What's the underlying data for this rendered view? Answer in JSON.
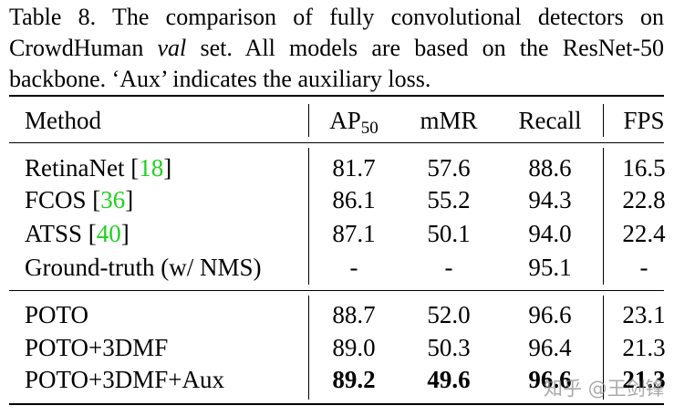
{
  "caption": {
    "lines": [
      [
        {
          "text": "Table 8. The comparison of fully convolutional detectors on"
        }
      ],
      [
        {
          "text": "CrowdHuman "
        },
        {
          "text": "val",
          "italic": true
        },
        {
          "text": " set.  All models are based on the ResNet-50"
        }
      ],
      [
        {
          "text": "backbone. ‘Aux’ indicates the auxiliary loss."
        }
      ]
    ]
  },
  "table": {
    "header": [
      [
        {
          "text": "Method"
        }
      ],
      [
        {
          "text": "AP"
        },
        {
          "text": "50",
          "sub": true
        }
      ],
      [
        {
          "text": "mMR"
        }
      ],
      [
        {
          "text": "Recall"
        }
      ],
      [
        {
          "text": "FPS"
        }
      ]
    ],
    "groups": [
      [
        {
          "method": [
            {
              "text": "RetinaNet ["
            },
            {
              "text": "18",
              "cite": true
            },
            {
              "text": "]"
            }
          ],
          "cells": [
            "81.7",
            "57.6",
            "88.6",
            "16.5"
          ]
        },
        {
          "method": [
            {
              "text": "FCOS ["
            },
            {
              "text": "36",
              "cite": true
            },
            {
              "text": "]"
            }
          ],
          "cells": [
            "86.1",
            "55.2",
            "94.3",
            "22.8"
          ]
        },
        {
          "method": [
            {
              "text": "ATSS ["
            },
            {
              "text": "40",
              "cite": true
            },
            {
              "text": "]"
            }
          ],
          "cells": [
            "87.1",
            "50.1",
            "94.0",
            "22.4"
          ]
        },
        {
          "method": [
            {
              "text": "Ground-truth (w/ NMS)"
            }
          ],
          "cells": [
            "-",
            "-",
            "95.1",
            "-"
          ]
        }
      ],
      [
        {
          "method": [
            {
              "text": "POTO"
            }
          ],
          "cells": [
            "88.7",
            "52.0",
            "96.6",
            "23.1"
          ]
        },
        {
          "method": [
            {
              "text": "POTO+3DMF"
            }
          ],
          "cells": [
            "89.0",
            "50.3",
            "96.4",
            "21.3"
          ]
        },
        {
          "method": [
            {
              "text": "POTO+3DMF+Aux"
            }
          ],
          "cells": [
            "89.2",
            "49.6",
            "96.6",
            "21.3"
          ],
          "bold": true
        }
      ]
    ]
  },
  "watermark": "知乎 @王剑锋"
}
